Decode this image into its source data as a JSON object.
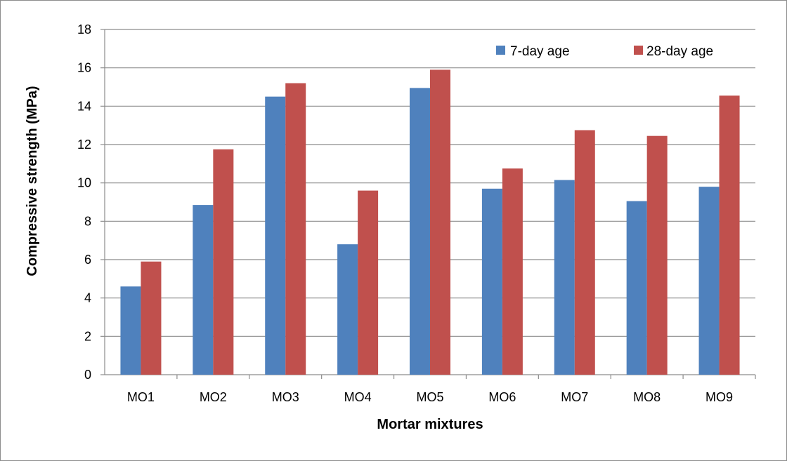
{
  "chart_data": {
    "type": "bar",
    "title": "",
    "xlabel": "Mortar mixtures",
    "ylabel": "Compressive strength (MPa)",
    "ylim": [
      0,
      18
    ],
    "yticks": [
      0,
      2,
      4,
      6,
      8,
      10,
      12,
      14,
      16,
      18
    ],
    "grid": true,
    "legend_position": "top-right",
    "categories": [
      "MO1",
      "MO2",
      "MO3",
      "MO4",
      "MO5",
      "MO6",
      "MO7",
      "MO8",
      "MO9"
    ],
    "series": [
      {
        "name": "7-day age",
        "color": "#4f81bd",
        "values": [
          4.6,
          8.85,
          14.5,
          6.8,
          14.95,
          9.7,
          10.15,
          9.05,
          9.8
        ]
      },
      {
        "name": "28-day age",
        "color": "#c0504d",
        "values": [
          5.9,
          11.75,
          15.2,
          9.6,
          15.9,
          10.75,
          12.75,
          12.45,
          14.55
        ]
      }
    ]
  }
}
